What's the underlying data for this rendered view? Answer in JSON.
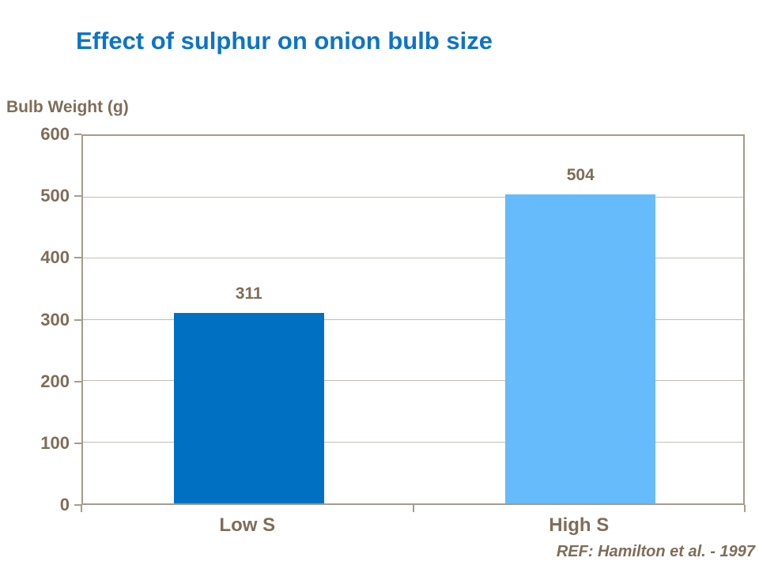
{
  "chart_data": {
    "type": "bar",
    "title": "Effect of sulphur on onion bulb size",
    "ylabel": "Bulb Weight (g)",
    "categories": [
      "Low S",
      "High S"
    ],
    "values": [
      311,
      504
    ],
    "value_labels": [
      "311",
      "504"
    ],
    "ylim": [
      0,
      600
    ],
    "ytick_interval": 100,
    "yticks": [
      0,
      100,
      200,
      300,
      400,
      500,
      600
    ],
    "grid": true,
    "legend_position": "none",
    "bar_colors": [
      "#0071C2",
      "#66BBFA"
    ],
    "reference": "REF: Hamilton et al. - 1997"
  },
  "colors": {
    "title": "#0D74C7",
    "text": "#7E6D58",
    "axis": "#A89B8B",
    "gridline": "#C6BCB1",
    "background": "#FFFFFF"
  }
}
